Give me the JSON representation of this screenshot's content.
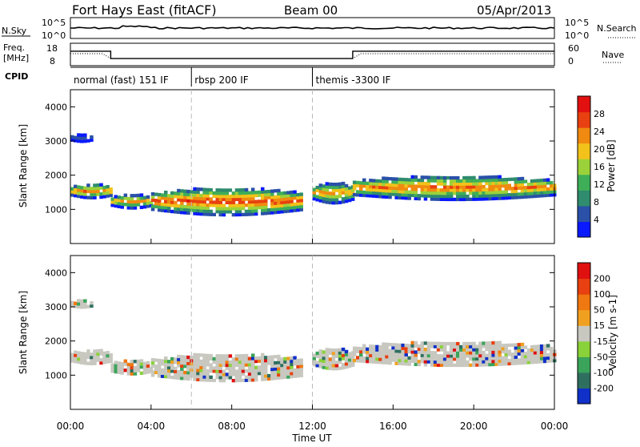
{
  "header": {
    "title": "Fort Hays East (fitACF)",
    "beam": "Beam 00",
    "date": "05/Apr/2013"
  },
  "noise_panel": {
    "left_label": "N.Sky",
    "right_label": "N.Search",
    "left_ticks": [
      "10^5",
      "10^0"
    ],
    "right_ticks": [
      "10^5",
      "10^0"
    ]
  },
  "freq_panel": {
    "left_label_1": "Freq.",
    "left_label_2": "[MHz]",
    "right_label": "Nave",
    "left_ticks": [
      "18",
      "8"
    ],
    "right_ticks": [
      "60",
      "0"
    ]
  },
  "cpid_panel": {
    "label": "CPID",
    "segments": [
      {
        "start_hour": 0,
        "end_hour": 5.9,
        "label": "normal (fast) 151 IF"
      },
      {
        "start_hour": 6.0,
        "end_hour": 12.0,
        "label": "rbsp 200 IF"
      },
      {
        "start_hour": 12.0,
        "end_hour": 24.0,
        "label": "themis -3300 IF"
      }
    ]
  },
  "power_panel": {
    "ylabel": "Slant Range [km]",
    "yticks": [
      "4000",
      "3000",
      "2000",
      "1000"
    ],
    "colorbar_label": "Power [dB]",
    "colorbar_ticks": [
      "28",
      "24",
      "20",
      "16",
      "12",
      "8",
      "4"
    ],
    "colors": [
      "#0a1aff",
      "#2a50a8",
      "#2f8c6e",
      "#3fae58",
      "#9bd23a",
      "#f2c21a",
      "#f08a10",
      "#e84010",
      "#e21010"
    ]
  },
  "velocity_panel": {
    "ylabel": "Slant Range [km]",
    "yticks": [
      "4000",
      "3000",
      "2000",
      "1000"
    ],
    "colorbar_label": "Velocity [m s-1]",
    "colorbar_ticks": [
      "200",
      "100",
      "50",
      "15",
      "-15",
      "-50",
      "-100",
      "-200"
    ],
    "colors": [
      "#1030c8",
      "#2f6f60",
      "#3aa45a",
      "#8ad23a",
      "#c8c8c0",
      "#f0a020",
      "#f07810",
      "#e84010",
      "#e01010"
    ]
  },
  "x_axis": {
    "label": "Time UT",
    "ticks": [
      "00:00",
      "04:00",
      "08:00",
      "12:00",
      "16:00",
      "20:00",
      "00:00"
    ]
  },
  "chart_data": {
    "type": "heatmap",
    "title": "Fort Hays East (fitACF)",
    "subtitle": "Beam 00",
    "date": "05/Apr/2013",
    "xlabel": "Time UT",
    "ylabel": "Slant Range [km]",
    "xlim_hours": [
      0,
      24
    ],
    "ylim_km": [
      0,
      4500
    ],
    "power_colorbar_db": [
      4,
      28
    ],
    "velocity_colorbar_ms": [
      -200,
      200
    ],
    "cpid_segments": [
      {
        "start_hour": 0,
        "end_hour": 6,
        "label": "normal (fast) 151 IF"
      },
      {
        "start_hour": 6,
        "end_hour": 12,
        "label": "rbsp 200 IF"
      },
      {
        "start_hour": 12,
        "end_hour": 24,
        "label": "themis -3300 IF"
      }
    ],
    "frequency_mhz": [
      {
        "start_hour": 0,
        "end_hour": 2,
        "value": 15
      },
      {
        "start_hour": 2,
        "end_hour": 14,
        "value": 11
      },
      {
        "start_hour": 14,
        "end_hour": 24,
        "value": 15
      }
    ],
    "scatter_bands": [
      {
        "start_hour": 0,
        "end_hour": 2,
        "range_center_km": 1500,
        "range_width_km": 400,
        "peak_power_db": 26
      },
      {
        "start_hour": 2,
        "end_hour": 4,
        "range_center_km": 1200,
        "range_width_km": 400,
        "peak_power_db": 24
      },
      {
        "start_hour": 4,
        "end_hour": 11.5,
        "range_center_km": 1200,
        "range_width_km": 800,
        "peak_power_db": 28
      },
      {
        "start_hour": 12,
        "end_hour": 14,
        "range_center_km": 1450,
        "range_width_km": 600,
        "peak_power_db": 24
      },
      {
        "start_hour": 14,
        "end_hour": 24,
        "range_center_km": 1600,
        "range_width_km": 700,
        "peak_power_db": 26
      },
      {
        "start_hour": 0,
        "end_hour": 1,
        "range_center_km": 3050,
        "range_width_km": 200,
        "peak_power_db": 10
      }
    ]
  }
}
